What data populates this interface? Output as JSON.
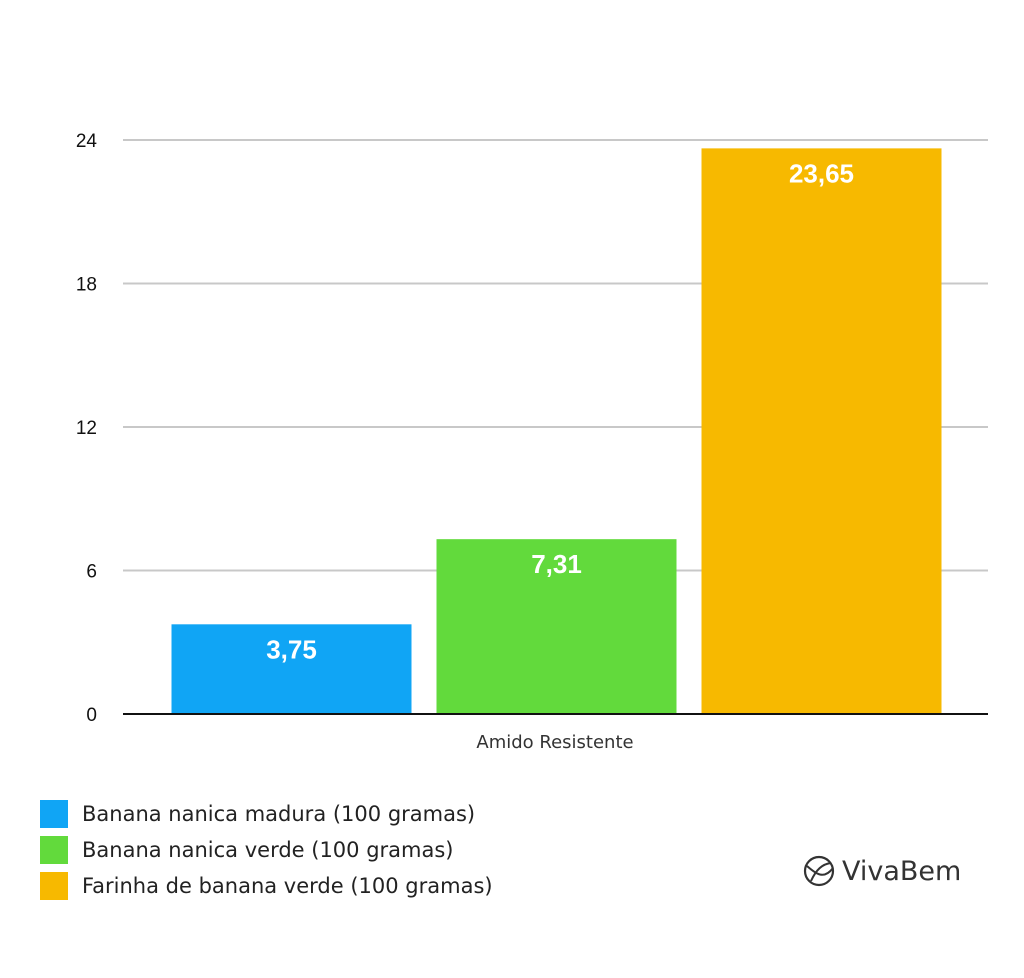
{
  "chart_data": {
    "type": "bar",
    "categories": [
      "Amido Resistente"
    ],
    "xlabel": "Amido Resistente",
    "ylabel": "",
    "title": "",
    "ylim": [
      0,
      24
    ],
    "yticks": [
      0,
      6,
      12,
      18,
      24
    ],
    "grid": true,
    "legend_position": "bottom-left",
    "series": [
      {
        "name": "Banana nanica madura (100 gramas)",
        "values": [
          3.75
        ],
        "label": "3,75",
        "color": "#10A5F5"
      },
      {
        "name": "Banana nanica verde (100 gramas)",
        "values": [
          7.31
        ],
        "label": "7,31",
        "color": "#62DA3C"
      },
      {
        "name": "Farinha de banana verde (100 gramas)",
        "values": [
          23.65
        ],
        "label": "23,65",
        "color": "#F7B900"
      }
    ]
  },
  "brand": {
    "name": "VivaBem",
    "icon": "vivabem-logo-icon"
  }
}
